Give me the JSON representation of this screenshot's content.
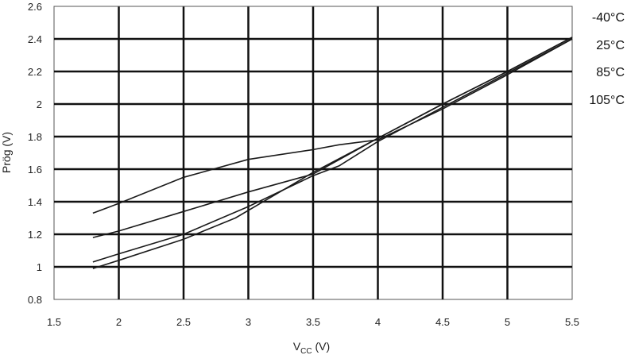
{
  "chart_data": {
    "type": "line",
    "title": "",
    "xlabel": {
      "main": "V",
      "sub": "CC",
      "unit": " (V)"
    },
    "ylabel": "Prög (V)",
    "xlim": [
      1.5,
      5.5
    ],
    "ylim": [
      0.8,
      2.6
    ],
    "x_ticks": [
      1.5,
      2,
      2.5,
      3,
      3.5,
      4,
      4.5,
      5,
      5.5
    ],
    "y_ticks": [
      0.8,
      1,
      1.2,
      1.4,
      1.6,
      1.8,
      2,
      2.2,
      2.4,
      2.6
    ],
    "x_tick_labels": [
      "1.5",
      "2",
      "2.5",
      "3",
      "3.5",
      "4",
      "4.5",
      "5",
      "5.5"
    ],
    "y_tick_labels": [
      "0.8",
      "1",
      "1.2",
      "1.4",
      "1.6",
      "1.8",
      "2",
      "2.2",
      "2.4",
      "2.6"
    ],
    "grid": true,
    "series_labels_placement": "right",
    "series": [
      {
        "name": "-40°C",
        "x": [
          1.8,
          2.0,
          2.5,
          3.0,
          3.5,
          3.7,
          4.0,
          4.5,
          5.0,
          5.5
        ],
        "values": [
          1.33,
          1.39,
          1.55,
          1.66,
          1.72,
          1.75,
          1.78,
          1.97,
          2.18,
          2.4
        ]
      },
      {
        "name": "25°C",
        "x": [
          1.8,
          2.0,
          2.5,
          3.0,
          3.5,
          4.0,
          4.5,
          5.0,
          5.5
        ],
        "values": [
          1.18,
          1.22,
          1.34,
          1.46,
          1.57,
          1.79,
          2.0,
          2.2,
          2.41
        ]
      },
      {
        "name": "85°C",
        "x": [
          1.8,
          2.0,
          2.5,
          3.0,
          3.5,
          3.7,
          4.0,
          4.5,
          5.0,
          5.5
        ],
        "values": [
          1.03,
          1.08,
          1.2,
          1.37,
          1.56,
          1.62,
          1.77,
          1.98,
          2.19,
          2.4
        ]
      },
      {
        "name": "105°C",
        "x": [
          1.8,
          2.0,
          2.5,
          2.9,
          3.5,
          4.0,
          4.5,
          5.0,
          5.5
        ],
        "values": [
          0.99,
          1.04,
          1.17,
          1.3,
          1.58,
          1.79,
          2.0,
          2.2,
          2.41
        ]
      }
    ]
  }
}
